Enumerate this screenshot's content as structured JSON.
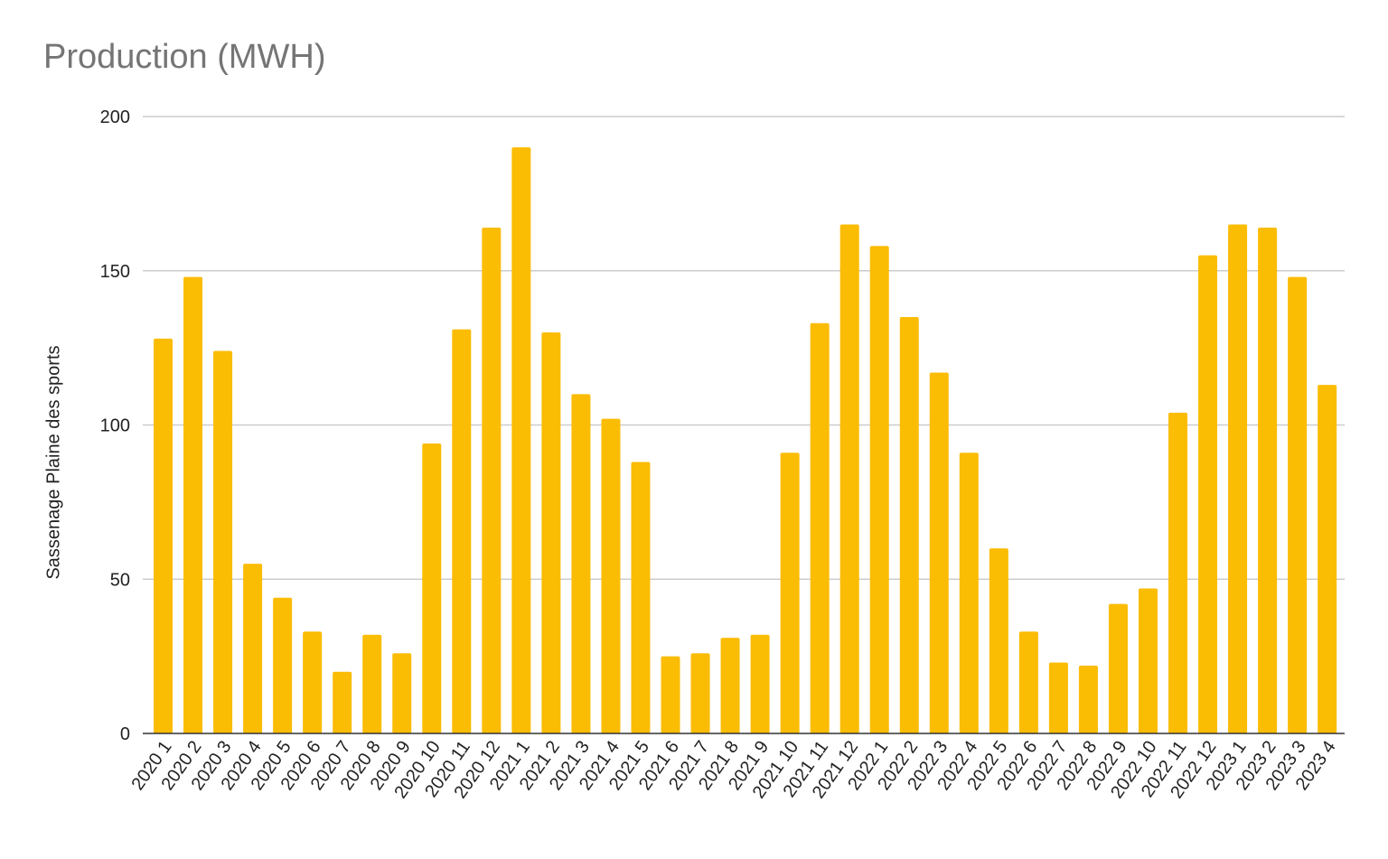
{
  "chart_data": {
    "type": "bar",
    "title": "Production (MWH)",
    "xlabel": "",
    "ylabel": "Sassenage Plaine des sports",
    "ylim": [
      0,
      200
    ],
    "yticks": [
      0,
      50,
      100,
      150,
      200
    ],
    "grid": true,
    "legend": "none",
    "bar_color": "#fbbc04",
    "categories": [
      "2020 1",
      "2020 2",
      "2020 3",
      "2020 4",
      "2020 5",
      "2020 6",
      "2020 7",
      "2020 8",
      "2020 9",
      "2020 10",
      "2020 11",
      "2020 12",
      "2021 1",
      "2021 2",
      "2021 3",
      "2021 4",
      "2021 5",
      "2021 6",
      "2021 7",
      "2021 8",
      "2021 9",
      "2021 10",
      "2021 11",
      "2021 12",
      "2022 1",
      "2022 2",
      "2022 3",
      "2022 4",
      "2022 5",
      "2022 6",
      "2022 7",
      "2022 8",
      "2022 9",
      "2022 10",
      "2022 11",
      "2022 12",
      "2023 1",
      "2023 2",
      "2023 3",
      "2023 4"
    ],
    "values": [
      128,
      148,
      124,
      55,
      44,
      33,
      20,
      32,
      26,
      94,
      131,
      164,
      190,
      130,
      110,
      102,
      88,
      25,
      26,
      31,
      32,
      91,
      133,
      165,
      158,
      135,
      117,
      91,
      60,
      33,
      23,
      22,
      42,
      47,
      104,
      155,
      165,
      164,
      148,
      113
    ]
  }
}
